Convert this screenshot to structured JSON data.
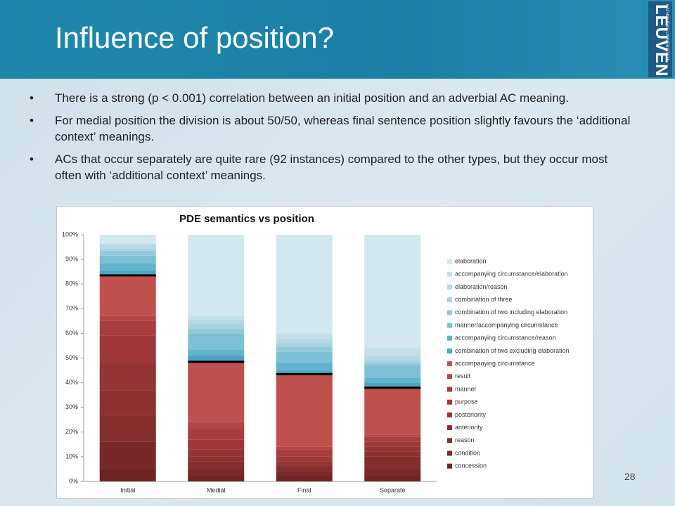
{
  "slide": {
    "title": "Influence of position?",
    "logo": {
      "main": "LEUVEN",
      "sub": "KATHOLIEKE UNIVERSITEIT"
    },
    "bullets": [
      "There is a strong (p < 0.001) correlation between an initial position and an adverbial AC meaning.",
      "For medial position the division is about 50/50, whereas final sentence position slightly favours the ‘additional context’ meanings.",
      "ACs that occur separately are quite rare (92 instances) compared to the other types, but they occur most often with ‘additional context’ meanings."
    ],
    "page_number": "28"
  },
  "chart_data": {
    "type": "stacked_bar",
    "title": "PDE semantics vs position",
    "categories": [
      "Initial",
      "Medial",
      "Final",
      "Separate"
    ],
    "ylim": [
      0,
      100
    ],
    "yticks": [
      {
        "value": 0,
        "label": "0%"
      },
      {
        "value": 10,
        "label": "10%"
      },
      {
        "value": 20,
        "label": "20%"
      },
      {
        "value": 30,
        "label": "30%"
      },
      {
        "value": 40,
        "label": "40%"
      },
      {
        "value": 50,
        "label": "50%"
      },
      {
        "value": 60,
        "label": "60%"
      },
      {
        "value": 70,
        "label": "70%"
      },
      {
        "value": 80,
        "label": "80%"
      },
      {
        "value": 90,
        "label": "90%"
      },
      {
        "value": 100,
        "label": "100%"
      }
    ],
    "grid": false,
    "series": [
      {
        "name": "concession",
        "color": "#6e2424",
        "values": [
          5,
          2,
          2,
          2
        ]
      },
      {
        "name": "condition",
        "color": "#7a2929",
        "values": [
          11,
          3,
          2,
          3
        ]
      },
      {
        "name": "reason",
        "color": "#842d2d",
        "values": [
          11,
          3,
          2,
          5
        ]
      },
      {
        "name": "anteriority",
        "color": "#8c3030",
        "values": [
          10,
          2,
          1,
          2
        ]
      },
      {
        "name": "posteriority",
        "color": "#953434",
        "values": [
          11,
          3,
          1,
          2
        ]
      },
      {
        "name": "purpose",
        "color": "#9e3838",
        "values": [
          11,
          4,
          2,
          2
        ]
      },
      {
        "name": "manner",
        "color": "#a83d3d",
        "values": [
          6,
          4.5,
          3,
          2
        ]
      },
      {
        "name": "result",
        "color": "#b44545",
        "values": [
          2,
          2.5,
          1,
          1
        ]
      },
      {
        "name": "accompanying circumstance",
        "color": "#c0504d",
        "values": [
          16.5,
          24.5,
          29.5,
          19
        ]
      },
      {
        "name": "combination of two excluding elaboration",
        "color": "#4aa6c4",
        "values": [
          2,
          2.5,
          1.5,
          2
        ]
      },
      {
        "name": "accompanying circumstance/reason",
        "color": "#62b3cd",
        "values": [
          3,
          2.5,
          3,
          2
        ]
      },
      {
        "name": "manner/accompanying circumstance",
        "color": "#7dc0d5",
        "values": [
          3,
          6.5,
          4.5,
          5
        ]
      },
      {
        "name": "combination of two including elaboration",
        "color": "#93cadb",
        "values": [
          2,
          2,
          2,
          1
        ]
      },
      {
        "name": "combination of three",
        "color": "#a6d3e1",
        "values": [
          1,
          2,
          1.5,
          1
        ]
      },
      {
        "name": "elaboration/reason",
        "color": "#b5dae6",
        "values": [
          1.5,
          1.5,
          2,
          2
        ]
      },
      {
        "name": "accompanying circumstance/elaboration",
        "color": "#c3e0ea",
        "values": [
          0.5,
          1.5,
          2,
          3
        ]
      },
      {
        "name": "elaboration",
        "color": "#d2e7ee",
        "values": [
          3.5,
          33,
          40,
          46
        ]
      }
    ]
  }
}
